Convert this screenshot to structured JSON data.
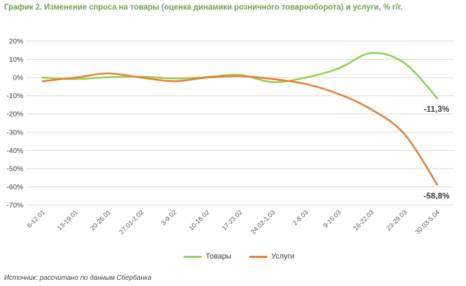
{
  "title": "График 2. Изменение спроса на товары (оценка динамики розничного товарооборота) и услуги, % г/г.",
  "source": "Источник: рассчитано по данным Сбербанка",
  "colors": {
    "series_goods": "#92d050",
    "series_services": "#ed7d31",
    "title": "#6aa84f",
    "grid": "#d9d9d9"
  },
  "chart_data": {
    "type": "line",
    "categories": [
      "6-12.01",
      "13-19.01",
      "20-26.01",
      "27.01-2.02",
      "3-9.02",
      "10-16.02",
      "17-23.02",
      "24.02-1.03",
      "2-8.03",
      "9-15.03",
      "16-22.03",
      "23-29.03",
      "30.03-5.04"
    ],
    "y_ticks": [
      "20%",
      "10%",
      "0%",
      "-10%",
      "-20%",
      "-30%",
      "-40%",
      "-50%",
      "-60%",
      "-70%"
    ],
    "ylim": [
      -70,
      20
    ],
    "grid": true,
    "legend_position": "bottom",
    "series": [
      {
        "name": "Товары",
        "values": [
          0.0,
          -0.8,
          0.2,
          0.5,
          -0.5,
          0.3,
          1.5,
          -2.5,
          0.0,
          5.0,
          13.5,
          8.0,
          -11.3
        ]
      },
      {
        "name": "Услуги",
        "values": [
          -2.0,
          0.0,
          2.3,
          0.0,
          -2.0,
          0.0,
          0.8,
          -0.8,
          -3.5,
          -9.0,
          -17.5,
          -31.0,
          -58.8
        ]
      }
    ],
    "data_labels": [
      "-11,3%",
      "-58,8%"
    ]
  }
}
